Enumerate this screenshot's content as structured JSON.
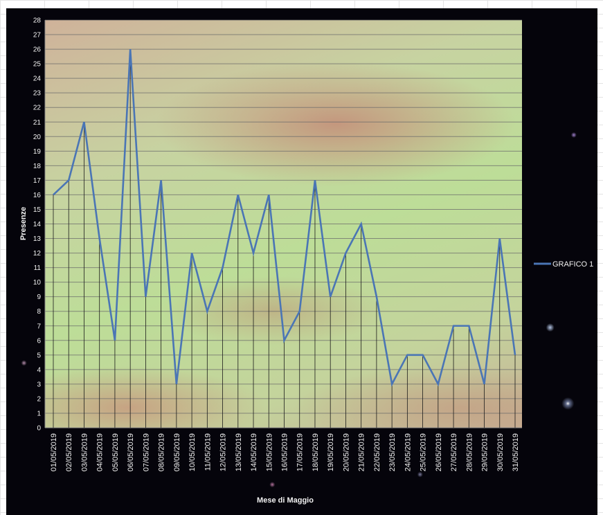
{
  "chart_data": {
    "type": "line",
    "categories": [
      "01/05/2019",
      "02/05/2019",
      "03/05/2019",
      "04/05/2019",
      "05/05/2019",
      "06/05/2019",
      "07/05/2019",
      "08/05/2019",
      "09/05/2019",
      "10/05/2019",
      "11/05/2019",
      "12/05/2019",
      "13/05/2019",
      "14/05/2019",
      "15/05/2019",
      "16/05/2019",
      "17/05/2019",
      "18/05/2019",
      "19/05/2019",
      "20/05/2019",
      "21/05/2019",
      "22/05/2019",
      "23/05/2019",
      "24/05/2019",
      "25/05/2019",
      "26/05/2019",
      "27/05/2019",
      "28/05/2019",
      "29/05/2019",
      "30/05/2019",
      "31/05/2019"
    ],
    "series": [
      {
        "name": "GRAFICO 1",
        "values": [
          16,
          17,
          21,
          13,
          6,
          26,
          9,
          17,
          3,
          12,
          8,
          11,
          16,
          12,
          16,
          6,
          8,
          17,
          9,
          12,
          14,
          9,
          3,
          5,
          5,
          3,
          7,
          7,
          3,
          13,
          5
        ]
      }
    ],
    "title": "",
    "xlabel": "Mese di Maggio",
    "ylabel": "Presenze",
    "ylim": [
      0,
      28
    ],
    "yticks": [
      0,
      1,
      2,
      3,
      4,
      5,
      6,
      7,
      8,
      9,
      10,
      11,
      12,
      13,
      14,
      15,
      16,
      17,
      18,
      19,
      20,
      21,
      22,
      23,
      24,
      25,
      26,
      27,
      28
    ],
    "grid": true,
    "drop_lines": true,
    "legend_position": "right",
    "colors": {
      "line": "#4a75b5",
      "gridline": "#6b6b6b",
      "tick_text": "#f2f2f2"
    }
  }
}
